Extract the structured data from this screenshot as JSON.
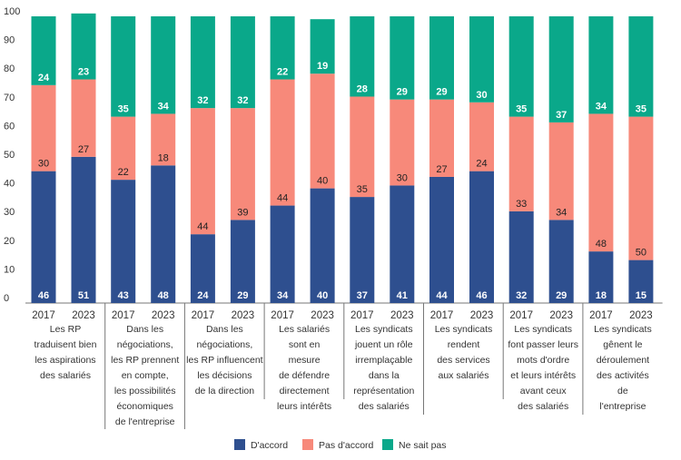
{
  "chart_data": {
    "type": "bar",
    "stacked": true,
    "ylim": [
      0,
      100
    ],
    "yticks": [
      0,
      10,
      20,
      30,
      40,
      50,
      60,
      70,
      80,
      90,
      100
    ],
    "grid": false,
    "legend_placement": "bottom",
    "colors": {
      "D'accord": "#2e4f8f",
      "Pas d'accord": "#f7897a",
      "Ne sait pas": "#0aa88a"
    },
    "series_names": [
      "D'accord",
      "Pas d'accord",
      "Ne sait pas"
    ],
    "groups": [
      {
        "label": "Les RP\ntraduisent bien\nles aspirations\ndes salariés",
        "bars": [
          {
            "year": "2017",
            "values": [
              46,
              30,
              24
            ]
          },
          {
            "year": "2023",
            "values": [
              51,
              27,
              23
            ]
          }
        ]
      },
      {
        "label": "Dans les\nnégociations,\nles RP prennent\nen compte,\nles possibilités\néconomiques\nde l'entreprise",
        "bars": [
          {
            "year": "2017",
            "values": [
              43,
              22,
              35
            ]
          },
          {
            "year": "2023",
            "values": [
              48,
              18,
              34
            ]
          }
        ]
      },
      {
        "label": "Dans les\nnégociations,\nles RP influencent\nles décisions\nde la direction",
        "bars": [
          {
            "year": "2017",
            "values": [
              24,
              44,
              32
            ]
          },
          {
            "year": "2023",
            "values": [
              29,
              39,
              32
            ]
          }
        ]
      },
      {
        "label": "Les salariés\nsont en\nmesure\nde défendre\ndirectement\nleurs intérêts",
        "bars": [
          {
            "year": "2017",
            "values": [
              34,
              44,
              22
            ]
          },
          {
            "year": "2023",
            "values": [
              40,
              40,
              19
            ]
          }
        ]
      },
      {
        "label": "Les syndicats\njouent un rôle\nirremplaçable\ndans la\nreprésentation\ndes salariés",
        "bars": [
          {
            "year": "2017",
            "values": [
              37,
              35,
              28
            ]
          },
          {
            "year": "2023",
            "values": [
              41,
              30,
              29
            ]
          }
        ]
      },
      {
        "label": "Les syndicats\nrendent\ndes services\naux salariés",
        "bars": [
          {
            "year": "2017",
            "values": [
              44,
              27,
              29
            ]
          },
          {
            "year": "2023",
            "values": [
              46,
              24,
              30
            ]
          }
        ]
      },
      {
        "label": "Les syndicats\nfont passer leurs\nmots d'ordre\net leurs intérêts\navant ceux\ndes salariés",
        "bars": [
          {
            "year": "2017",
            "values": [
              32,
              33,
              35
            ]
          },
          {
            "year": "2023",
            "values": [
              29,
              34,
              37
            ]
          }
        ]
      },
      {
        "label": "Les syndicats\ngênent le\ndéroulement\ndes activités\nde\nl'entreprise",
        "bars": [
          {
            "year": "2017",
            "values": [
              18,
              48,
              34
            ]
          },
          {
            "year": "2023",
            "values": [
              15,
              50,
              35
            ]
          }
        ]
      }
    ]
  }
}
